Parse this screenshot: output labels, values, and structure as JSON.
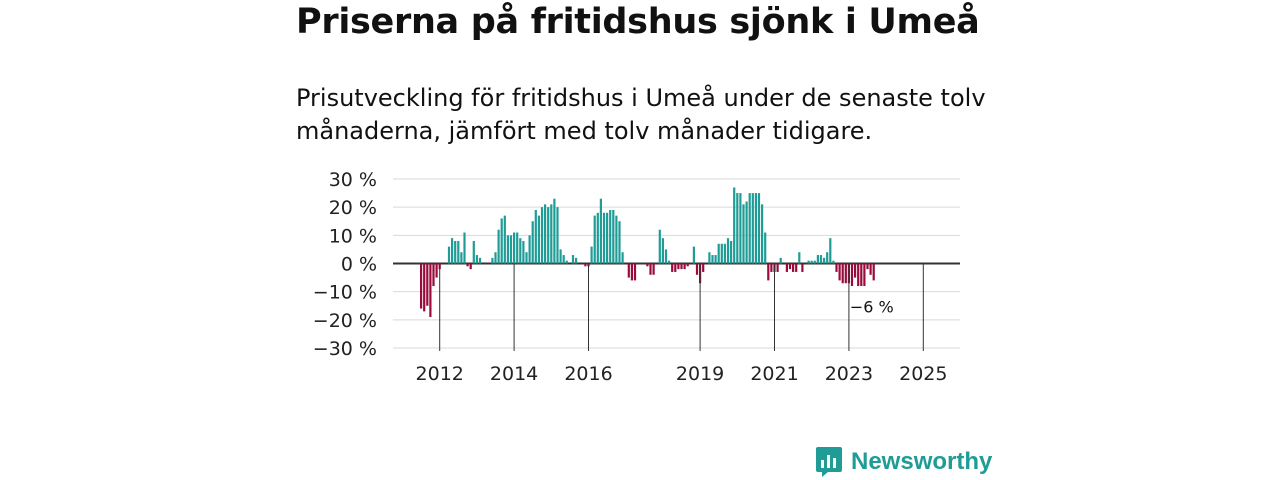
{
  "title": "Priserna på fritidshus sjönk i Umeå",
  "subtitle": "Prisutveckling för fritidshus i Umeå under de senaste tolv månaderna, jämfört med tolv månader tidigare.",
  "brand": {
    "name": "Newsworthy"
  },
  "colors": {
    "positive": "#1f9c96",
    "negative": "#9b0a3c",
    "grid": "#d9d9d9",
    "zero": "#333333",
    "brand": "#1f9c96"
  },
  "chart_data": {
    "type": "bar",
    "title": "Priserna på fritidshus sjönk i Umeå",
    "xlabel": "",
    "ylabel": "",
    "ylim": [
      -30,
      30
    ],
    "y_ticks": [
      30,
      20,
      10,
      0,
      -10,
      -20,
      -30
    ],
    "y_tick_labels": [
      "30 %",
      "20 %",
      "10 %",
      "0 %",
      "−10 %",
      "−20 %",
      "−30 %"
    ],
    "x_ticks": [
      {
        "label": "2012",
        "index": 6
      },
      {
        "label": "2014",
        "index": 30
      },
      {
        "label": "2016",
        "index": 54
      },
      {
        "label": "2019",
        "index": 90
      },
      {
        "label": "2021",
        "index": 114
      },
      {
        "label": "2023",
        "index": 138
      },
      {
        "label": "2025",
        "index": 162
      }
    ],
    "series_start": "2011-07",
    "grid": true,
    "last_label": "−6 %",
    "values": [
      -16,
      -17,
      -15,
      -19,
      -8,
      -5,
      -2,
      0,
      0,
      6,
      9,
      8,
      8,
      4,
      11,
      -1,
      -2,
      8,
      3,
      2,
      0,
      0,
      0,
      2,
      4,
      12,
      16,
      17,
      10,
      10,
      11,
      11,
      9,
      8,
      4,
      10,
      15,
      19,
      17,
      20,
      21,
      20,
      21,
      23,
      20,
      5,
      3,
      1,
      0,
      3,
      2,
      0,
      0,
      -1,
      -1,
      6,
      17,
      18,
      23,
      18,
      18,
      19,
      19,
      17,
      15,
      4,
      0,
      -5,
      -6,
      -6,
      0,
      0,
      0,
      -1,
      -4,
      -4,
      0,
      12,
      9,
      5,
      1,
      -3,
      -3,
      -2,
      -2,
      -2,
      -1,
      0,
      6,
      -4,
      -7,
      -3,
      0,
      4,
      3,
      3,
      7,
      7,
      7,
      9,
      8,
      27,
      25,
      25,
      21,
      22,
      25,
      25,
      25,
      25,
      21,
      11,
      -6,
      -3,
      -3,
      -3,
      2,
      0,
      -3,
      -2,
      -3,
      -3,
      4,
      -3,
      0,
      1,
      1,
      1,
      3,
      3,
      2,
      4,
      9,
      1,
      -3,
      -6,
      -7,
      -7,
      -7,
      -8,
      -5,
      -8,
      -8,
      -8,
      -2,
      -4,
      -6
    ]
  }
}
